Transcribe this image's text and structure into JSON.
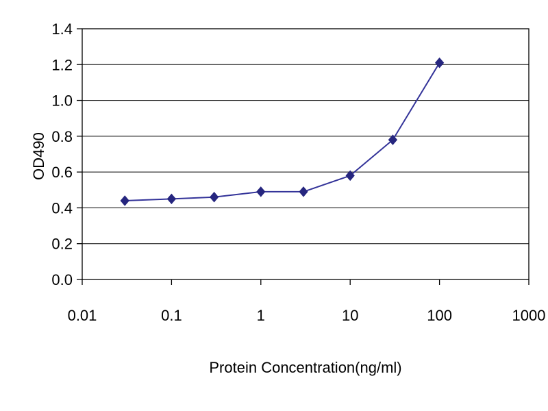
{
  "chart_data": {
    "type": "line",
    "title": "",
    "xlabel": "Protein Concentration(ng/ml)",
    "ylabel": "OD490",
    "xscale": "log",
    "xlim": [
      0.01,
      1000
    ],
    "ylim": [
      0.0,
      1.4
    ],
    "xticks": [
      0.01,
      0.1,
      1,
      10,
      100,
      1000
    ],
    "xtick_labels": [
      "0.01",
      "0.1",
      "1",
      "10",
      "100",
      "1000"
    ],
    "yticks": [
      0.0,
      0.2,
      0.4,
      0.6,
      0.8,
      1.0,
      1.2,
      1.4
    ],
    "ytick_labels": [
      "0.0",
      "0.2",
      "0.4",
      "0.6",
      "0.8",
      "1.0",
      "1.2",
      "1.4"
    ],
    "grid": "horizontal",
    "legend": "none",
    "series": [
      {
        "name": "OD490",
        "marker": "diamond",
        "x": [
          0.03,
          0.1,
          0.3,
          1,
          3,
          10,
          30,
          100
        ],
        "y": [
          0.44,
          0.45,
          0.46,
          0.49,
          0.49,
          0.58,
          0.78,
          1.21
        ]
      }
    ],
    "colors": {
      "line": "#333399",
      "marker": "#26267f",
      "grid": "#000000",
      "axis": "#000000",
      "text": "#000000",
      "background": "#ffffff"
    }
  }
}
